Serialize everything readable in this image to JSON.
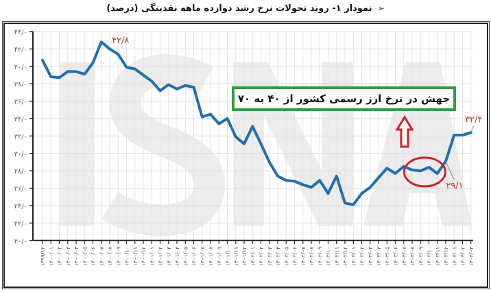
{
  "chart_data": {
    "type": "line",
    "title": "نمودار ۱- روند تحولات نرخ رشد دوازده ماهه نقدینگی (درصد)",
    "ylim": [
      20,
      44
    ],
    "yticks": [
      "۴۴/۰",
      "۴۲/۰",
      "۴۰/۰",
      "۳۸/۰",
      "۳۶/۰",
      "۳۴/۰",
      "۳۲/۰",
      "۳۰/۰",
      "۲۸/۰",
      "۲۶/۰",
      "۲۴/۰",
      "۲۲/۰",
      "۲۰/۰"
    ],
    "ytick_values": [
      44,
      42,
      40,
      38,
      36,
      34,
      32,
      30,
      28,
      26,
      24,
      22,
      20
    ],
    "grid": true,
    "series_color": "#1f6fb2",
    "categories": [
      "۱۳۹۹/۱۲",
      "۱۴۰۰/۰۱",
      "۱۴۰۰/۰۲",
      "۱۴۰۰/۰۳",
      "۱۴۰۰/۰۴",
      "۱۴۰۰/۰۵",
      "۱۴۰۰/۰۶",
      "۱۴۰۰/۰۷",
      "۱۴۰۰/۰۸",
      "۱۴۰۰/۰۹",
      "۱۴۰۰/۱۰",
      "۱۴۰۰/۱۱",
      "۱۴۰۰/۱۲",
      "۱۴۰۱/۰۱",
      "۱۴۰۱/۰۲",
      "۱۴۰۱/۰۳",
      "۱۴۰۱/۰۴",
      "۱۴۰۱/۰۵",
      "۱۴۰۱/۰۶",
      "۱۴۰۱/۰۷",
      "۱۴۰۱/۰۸",
      "۱۴۰۱/۰۹",
      "۱۴۰۱/۱۰",
      "۱۴۰۱/۱۱",
      "۱۴۰۱/۱۲",
      "۱۴۰۲/۰۱",
      "۱۴۰۲/۰۲",
      "۱۴۰۲/۰۳",
      "۱۴۰۲/۰۴",
      "۱۴۰۲/۰۵",
      "۱۴۰۲/۰۶",
      "۱۴۰۲/۰۷",
      "۱۴۰۲/۰۸",
      "۱۴۰۲/۰۹",
      "۱۴۰۲/۱۰",
      "۱۴۰۲/۱۱",
      "۱۴۰۲/۱۲",
      "۱۴۰۳/۰۱",
      "۱۴۰۳/۰۲",
      "۱۴۰۳/۰۳",
      "۱۴۰۳/۰۴",
      "۱۴۰۳/۰۵",
      "۱۴۰۳/۰۶",
      "۱۴۰۳/۰۷",
      "۱۴۰۳/۰۸",
      "۱۴۰۳/۰۹",
      "۱۴۰۳/۱۰",
      "۱۴۰۳/۱۱",
      "۱۴۰۳/۱۲",
      "۱۴۰۴/۰۱",
      "۱۴۰۴/۰۲",
      "۱۴۰۴/۰۳"
    ],
    "values": [
      40.7,
      38.8,
      38.7,
      39.4,
      39.4,
      39.1,
      40.4,
      42.8,
      42.0,
      41.4,
      39.9,
      39.7,
      39.0,
      38.3,
      37.2,
      37.9,
      37.4,
      37.8,
      37.6,
      34.2,
      34.5,
      33.4,
      34.0,
      31.9,
      31.1,
      33.1,
      31.1,
      29.0,
      27.4,
      26.9,
      26.8,
      26.4,
      26.1,
      26.9,
      25.4,
      27.4,
      24.3,
      24.1,
      25.4,
      26.1,
      27.2,
      28.3,
      27.7,
      28.5,
      28.1,
      28.0,
      28.4,
      27.7,
      29.1,
      32.1,
      32.1,
      32.4
    ],
    "data_labels": [
      {
        "index": 7,
        "text": "۴۲/۸"
      },
      {
        "index": 48,
        "text": "۲۹/۱"
      },
      {
        "index": 51,
        "text": "۳۲/۴"
      }
    ],
    "label_color": "#c0392b",
    "annotation": {
      "text": "جهش در نرخ ارز رسمی کشور از ۴۰ به ۷۰",
      "box_color": "#2ea043",
      "arrow_color": "#d0202a",
      "highlight_range": [
        44,
        47
      ]
    },
    "watermark": "ISNA"
  }
}
